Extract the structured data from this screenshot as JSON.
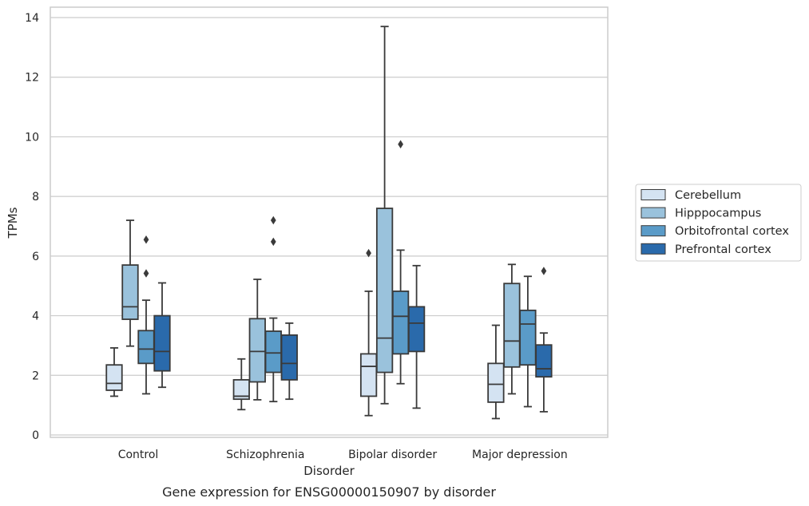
{
  "chart_data": {
    "type": "box",
    "title": "",
    "caption": "Gene expression for ENSG00000150907 by disorder",
    "xlabel": "Disorder",
    "ylabel": "TPMs",
    "ylim": [
      -0.1,
      14.35
    ],
    "yticks": [
      0,
      2,
      4,
      6,
      8,
      10,
      12,
      14
    ],
    "grid": "horizontal",
    "legend_position": "right",
    "categories": [
      "Control",
      "Schizophrenia",
      "Bipolar disorder",
      "Major depression"
    ],
    "series": [
      {
        "name": "Cerebellum",
        "color": "#d4e3f2",
        "boxes": [
          {
            "whisker_low": 1.3,
            "q1": 1.5,
            "median": 1.73,
            "q3": 2.35,
            "whisker_high": 2.92,
            "outliers": []
          },
          {
            "whisker_low": 0.85,
            "q1": 1.2,
            "median": 1.3,
            "q3": 1.85,
            "whisker_high": 2.55,
            "outliers": []
          },
          {
            "whisker_low": 0.65,
            "q1": 1.3,
            "median": 2.3,
            "q3": 2.72,
            "whisker_high": 4.82,
            "outliers": [
              6.1
            ]
          },
          {
            "whisker_low": 0.55,
            "q1": 1.1,
            "median": 1.7,
            "q3": 2.4,
            "whisker_high": 3.68,
            "outliers": []
          }
        ]
      },
      {
        "name": "Hipppocampus",
        "color": "#9ac2dc",
        "boxes": [
          {
            "whisker_low": 2.98,
            "q1": 3.88,
            "median": 4.3,
            "q3": 5.7,
            "whisker_high": 7.2,
            "outliers": []
          },
          {
            "whisker_low": 1.18,
            "q1": 1.78,
            "median": 2.8,
            "q3": 3.9,
            "whisker_high": 5.22,
            "outliers": []
          },
          {
            "whisker_low": 1.05,
            "q1": 2.1,
            "median": 3.25,
            "q3": 7.6,
            "whisker_high": 13.7,
            "outliers": []
          },
          {
            "whisker_low": 1.38,
            "q1": 2.28,
            "median": 3.15,
            "q3": 5.08,
            "whisker_high": 5.72,
            "outliers": []
          }
        ]
      },
      {
        "name": "Orbitofrontal cortex",
        "color": "#5a9bc8",
        "boxes": [
          {
            "whisker_low": 1.38,
            "q1": 2.4,
            "median": 2.88,
            "q3": 3.5,
            "whisker_high": 4.52,
            "outliers": [
              5.42,
              6.55
            ]
          },
          {
            "whisker_low": 1.12,
            "q1": 2.1,
            "median": 2.75,
            "q3": 3.48,
            "whisker_high": 3.92,
            "outliers": [
              6.48,
              7.2
            ]
          },
          {
            "whisker_low": 1.72,
            "q1": 2.72,
            "median": 3.98,
            "q3": 4.82,
            "whisker_high": 6.2,
            "outliers": [
              9.75
            ]
          },
          {
            "whisker_low": 0.95,
            "q1": 2.35,
            "median": 3.72,
            "q3": 4.18,
            "whisker_high": 5.32,
            "outliers": []
          }
        ]
      },
      {
        "name": "Prefrontal cortex",
        "color": "#2a6aab",
        "boxes": [
          {
            "whisker_low": 1.6,
            "q1": 2.15,
            "median": 2.8,
            "q3": 4.0,
            "whisker_high": 5.1,
            "outliers": []
          },
          {
            "whisker_low": 1.2,
            "q1": 1.85,
            "median": 2.4,
            "q3": 3.35,
            "whisker_high": 3.75,
            "outliers": []
          },
          {
            "whisker_low": 0.9,
            "q1": 2.8,
            "median": 3.75,
            "q3": 4.3,
            "whisker_high": 5.68,
            "outliers": []
          },
          {
            "whisker_low": 0.78,
            "q1": 1.95,
            "median": 2.22,
            "q3": 3.02,
            "whisker_high": 3.42,
            "outliers": [
              5.5
            ]
          }
        ]
      }
    ]
  }
}
